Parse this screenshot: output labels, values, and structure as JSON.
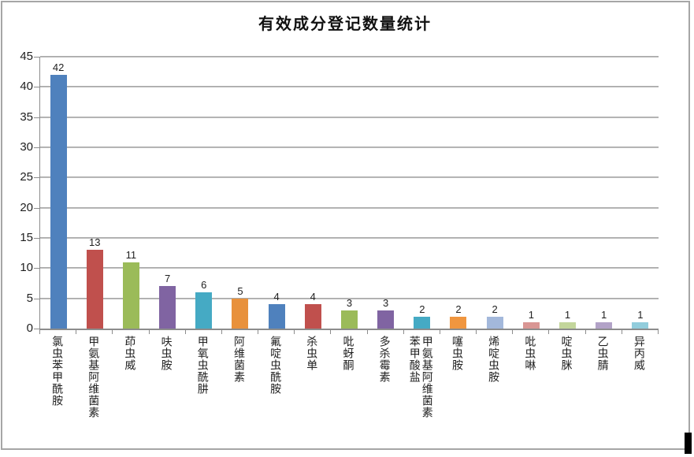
{
  "chart_data": {
    "type": "bar",
    "title": "有效成分登记数量统计",
    "categories": [
      "氯虫苯甲酰胺",
      "甲氨基阿维菌素",
      "茚虫威",
      "呋虫胺",
      "甲氧虫酰肼",
      "阿维菌素",
      "氟啶虫酰胺",
      "杀虫单",
      "吡蚜酮",
      "多杀霉素",
      "甲氨基阿维菌素苯甲酸盐",
      "噻虫胺",
      "烯啶虫胺",
      "吡虫啉",
      "啶虫脒",
      "乙虫腈",
      "异丙威"
    ],
    "values": [
      42,
      13,
      11,
      7,
      6,
      5,
      4,
      4,
      3,
      3,
      2,
      2,
      2,
      1,
      1,
      1,
      1
    ],
    "bar_colors": [
      "#4F81BD",
      "#C0504D",
      "#9BBB59",
      "#8064A2",
      "#45AAC4",
      "#E8913C",
      "#4F81BD",
      "#C0504D",
      "#9BBB59",
      "#8064A2",
      "#45AAC4",
      "#F0963F",
      "#A3B8DB",
      "#D99694",
      "#C3D69B",
      "#B2A2C7",
      "#92CDDC"
    ],
    "xlabel": "",
    "ylabel": "",
    "ylim": [
      0,
      45
    ],
    "yticks": [
      0,
      5,
      10,
      15,
      20,
      25,
      30,
      35,
      40,
      45
    ],
    "grid": true,
    "data_labels": true,
    "legend": "none"
  },
  "style": {
    "frame_border_color": "#A6A6A6",
    "axis_color": "#8C8C8C",
    "gridline_color": "#BDBDBD",
    "text_color": "#1F1F1F"
  }
}
